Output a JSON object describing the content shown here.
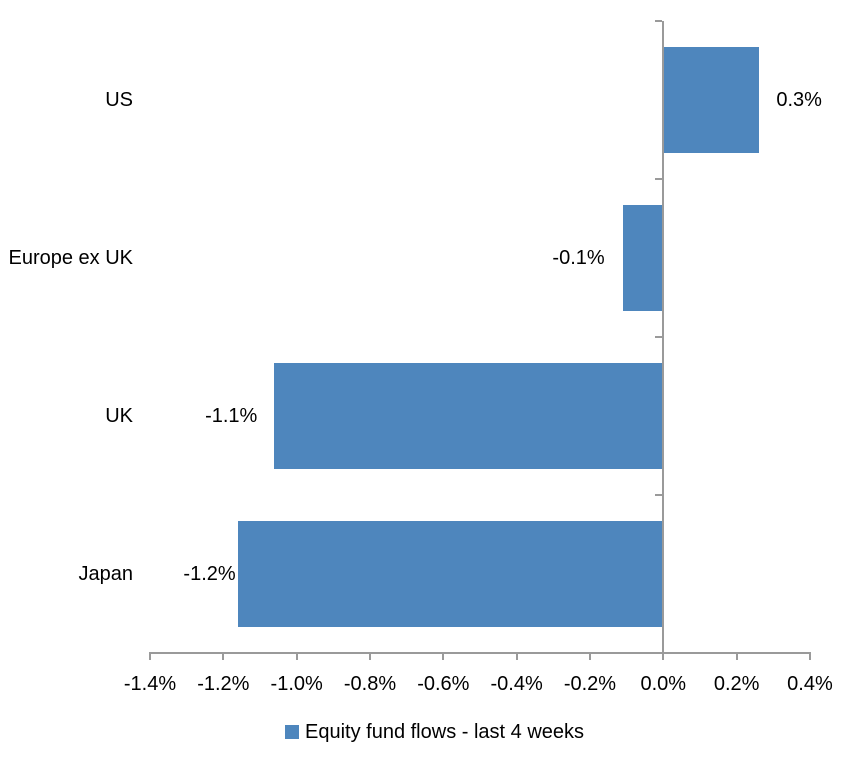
{
  "chart_data": {
    "type": "bar",
    "orientation": "horizontal",
    "title": "",
    "categories": [
      "US",
      "Europe ex UK",
      "UK",
      "Japan"
    ],
    "values": [
      0.3,
      -0.1,
      -1.1,
      -1.2
    ],
    "value_labels": [
      "0.3%",
      "-0.1%",
      "-1.1%",
      "-1.2%"
    ],
    "values_precise": [
      0.26,
      -0.11,
      -1.06,
      -1.16
    ],
    "series": [
      {
        "name": "Equity fund flows - last 4 weeks",
        "values": [
          0.3,
          -0.1,
          -1.1,
          -1.2
        ]
      }
    ],
    "xlabel": "",
    "ylabel": "",
    "x_axis": {
      "min": -1.4,
      "max": 0.4,
      "step": 0.2,
      "tick_labels": [
        "-1.4%",
        "-1.2%",
        "-1.0%",
        "-0.8%",
        "-0.6%",
        "-0.4%",
        "-0.2%",
        "0.0%",
        "0.2%",
        "0.4%"
      ]
    },
    "legend": {
      "position": "bottom",
      "label": "Equity fund flows - last 4 weeks"
    },
    "grid": false,
    "data_label_position": "outside-end",
    "colors": {
      "bar": "#4E86BD",
      "axis": "#9A9A9A",
      "text": "#000000",
      "background": "#FFFFFF"
    }
  }
}
